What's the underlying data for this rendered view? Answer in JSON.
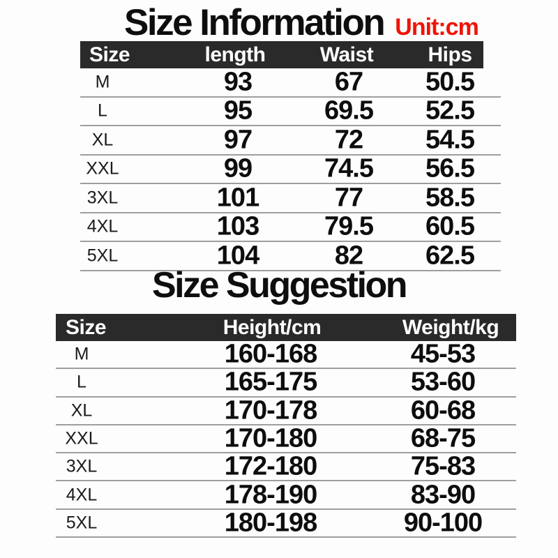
{
  "colors": {
    "header_bg": "#2a2a2a",
    "header_text": "#ffffff",
    "unit_red": "#ee1407",
    "body_text": "#0d0d0d",
    "divider": "#9e9e9e",
    "background": "#fdfdfd"
  },
  "chart_data": [
    {
      "type": "table",
      "title": "Size Information",
      "unit": "Unit:cm",
      "columns": [
        "Size",
        "length",
        "Waist",
        "Hips"
      ],
      "rows": [
        [
          "M",
          "93",
          "67",
          "50.5"
        ],
        [
          "L",
          "95",
          "69.5",
          "52.5"
        ],
        [
          "XL",
          "97",
          "72",
          "54.5"
        ],
        [
          "XXL",
          "99",
          "74.5",
          "56.5"
        ],
        [
          "3XL",
          "101",
          "77",
          "58.5"
        ],
        [
          "4XL",
          "103",
          "79.5",
          "60.5"
        ],
        [
          "5XL",
          "104",
          "82",
          "62.5"
        ]
      ]
    },
    {
      "type": "table",
      "title": "Size Suggestion",
      "columns": [
        "Size",
        "Height/cm",
        "Weight/kg"
      ],
      "rows": [
        [
          "M",
          "160-168",
          "45-53"
        ],
        [
          "L",
          "165-175",
          "53-60"
        ],
        [
          "XL",
          "170-178",
          "60-68"
        ],
        [
          "XXL",
          "170-180",
          "68-75"
        ],
        [
          "3XL",
          "172-180",
          "75-83"
        ],
        [
          "4XL",
          "178-190",
          "83-90"
        ],
        [
          "5XL",
          "180-198",
          "90-100"
        ]
      ]
    }
  ]
}
